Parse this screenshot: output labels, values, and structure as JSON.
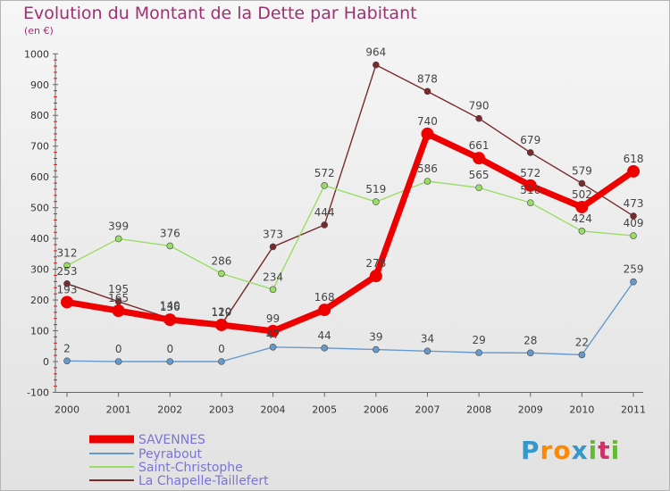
{
  "chart_data": {
    "type": "line",
    "title": "Evolution du Montant de la Dette par Habitant",
    "unit_label": "(en €)",
    "xlabel": "",
    "ylabel": "",
    "ylim": [
      -100,
      1000
    ],
    "y_ticks": [
      -100,
      0,
      100,
      200,
      300,
      400,
      500,
      600,
      700,
      800,
      900,
      1000
    ],
    "categories": [
      "2000",
      "2001",
      "2002",
      "2003",
      "2004",
      "2005",
      "2006",
      "2007",
      "2008",
      "2009",
      "2010",
      "2011"
    ],
    "series": [
      {
        "name": "SAVENNES",
        "color": "#ee0000",
        "values": [
          193,
          165,
          136,
          119,
          99,
          168,
          278,
          740,
          661,
          572,
          502,
          618
        ]
      },
      {
        "name": "Peyrabout",
        "color": "#6699cc",
        "values": [
          2,
          0,
          0,
          0,
          47,
          44,
          39,
          34,
          29,
          28,
          22,
          259
        ]
      },
      {
        "name": "Saint-Christophe",
        "color": "#99dd66",
        "values": [
          312,
          399,
          376,
          286,
          234,
          572,
          519,
          586,
          565,
          516,
          424,
          409
        ]
      },
      {
        "name": "La Chapelle-Taillefert",
        "color": "#7a2a2a",
        "values": [
          253,
          195,
          140,
          120,
          373,
          444,
          964,
          878,
          790,
          679,
          579,
          473
        ]
      }
    ],
    "legend_position": "bottom-left",
    "grid": false
  },
  "logo": {
    "letters": [
      "P",
      "r",
      "o",
      "x",
      "i",
      "t",
      "i"
    ],
    "colors": [
      "#3399cc",
      "#ff8800",
      "#ff8800",
      "#3399cc",
      "#66bb33",
      "#cc3366",
      "#66bb33"
    ]
  }
}
